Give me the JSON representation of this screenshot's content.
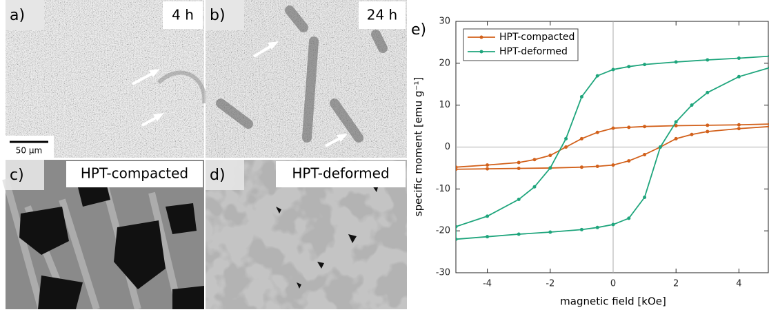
{
  "panels": [
    {
      "label": "a)",
      "caption": "4 h",
      "scale_bar": "50 µm"
    },
    {
      "label": "b)",
      "caption": "24 h"
    },
    {
      "label": "c)",
      "caption": "HPT-compacted"
    },
    {
      "label": "d)",
      "caption": "HPT-deformed"
    }
  ],
  "chart_data": {
    "type": "line",
    "label": "e)",
    "x_label": "magnetic field [kOe]",
    "y_label": "specific moment [emu g⁻¹]",
    "xlim": [
      -5,
      5
    ],
    "ylim": [
      -30,
      30
    ],
    "xticks": [
      -4,
      -2,
      0,
      2,
      4
    ],
    "yticks": [
      -30,
      -20,
      -10,
      0,
      10,
      20,
      30
    ],
    "zero_lines": true,
    "legend": "top-left",
    "series": [
      {
        "name": "HPT-compacted",
        "color": "#d2601a",
        "x": [
          5,
          4,
          3,
          2,
          1,
          0.5,
          0,
          -0.5,
          -1,
          -1.5,
          -2,
          -2.5,
          -3,
          -4,
          -5,
          -5,
          -4,
          -3,
          -2,
          -1,
          -0.5,
          0,
          0.5,
          1,
          1.5,
          2,
          2.5,
          3,
          4,
          5
        ],
        "y": [
          5.5,
          5.3,
          5.2,
          5.1,
          4.9,
          4.7,
          4.5,
          3.5,
          2,
          0,
          -2,
          -3,
          -3.7,
          -4.3,
          -4.8,
          -5.3,
          -5.2,
          -5.1,
          -5,
          -4.8,
          -4.6,
          -4.3,
          -3.3,
          -1.8,
          0,
          2,
          3,
          3.7,
          4.4,
          4.9
        ]
      },
      {
        "name": "HPT-deformed",
        "color": "#1ea57c",
        "x": [
          5,
          4,
          3,
          2,
          1,
          0.5,
          0,
          -0.5,
          -1,
          -1.5,
          -2,
          -2.5,
          -3,
          -4,
          -5,
          -5,
          -4,
          -3,
          -2,
          -1,
          -0.5,
          0,
          0.5,
          1,
          1.5,
          2,
          2.5,
          3,
          4,
          5
        ],
        "y": [
          21.7,
          21.2,
          20.8,
          20.3,
          19.7,
          19.2,
          18.5,
          17,
          12,
          2,
          -5,
          -9.5,
          -12.5,
          -16.5,
          -19,
          -22,
          -21.4,
          -20.8,
          -20.3,
          -19.7,
          -19.2,
          -18.5,
          -17,
          -12,
          0,
          6,
          10,
          13,
          16.8,
          19
        ]
      }
    ]
  }
}
